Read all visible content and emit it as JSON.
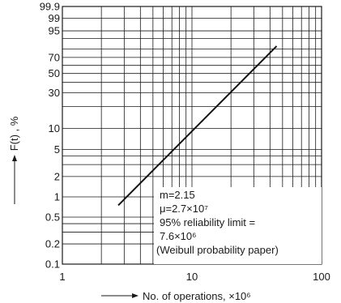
{
  "chart_data": {
    "type": "line",
    "title": "",
    "xlabel": "No. of operations, ×10⁶",
    "ylabel": "F(t) , %",
    "x_scale": "log",
    "y_scale": "weibull",
    "xlim": [
      1,
      100
    ],
    "ylim": [
      0.1,
      99.9
    ],
    "grid": true,
    "x_ticks": [
      1,
      2,
      3,
      4,
      5,
      6,
      7,
      8,
      9,
      10,
      20,
      30,
      40,
      50,
      60,
      70,
      80,
      90,
      100
    ],
    "x_tick_labels": [
      {
        "value": 1,
        "label": "1"
      },
      {
        "value": 10,
        "label": "10"
      },
      {
        "value": 100,
        "label": "100"
      }
    ],
    "y_ticks": [
      {
        "value": 0.1,
        "label": "0.1"
      },
      {
        "value": 0.2,
        "label": "0.2"
      },
      {
        "value": 0.5,
        "label": "0.5"
      },
      {
        "value": 1,
        "label": "1"
      },
      {
        "value": 2,
        "label": "2"
      },
      {
        "value": 5,
        "label": "5"
      },
      {
        "value": 10,
        "label": "10"
      },
      {
        "value": 30,
        "label": "30"
      },
      {
        "value": 50,
        "label": "50"
      },
      {
        "value": 70,
        "label": "70"
      },
      {
        "value": 95,
        "label": "95"
      },
      {
        "value": 99,
        "label": "99"
      },
      {
        "value": 99.9,
        "label": "99.9"
      }
    ],
    "y_grid_extra": [
      0.3,
      0.4,
      3,
      4,
      20,
      40,
      60,
      80,
      90
    ],
    "series": [
      {
        "x": [
          2.7,
          45
        ],
        "y": [
          0.75,
          83
        ]
      }
    ],
    "annotations": [
      "m=2.15",
      "μ=2.7×10⁷",
      "95% reliability limit =",
      "7.6×10⁶",
      "(Weibull probability paper)"
    ]
  }
}
